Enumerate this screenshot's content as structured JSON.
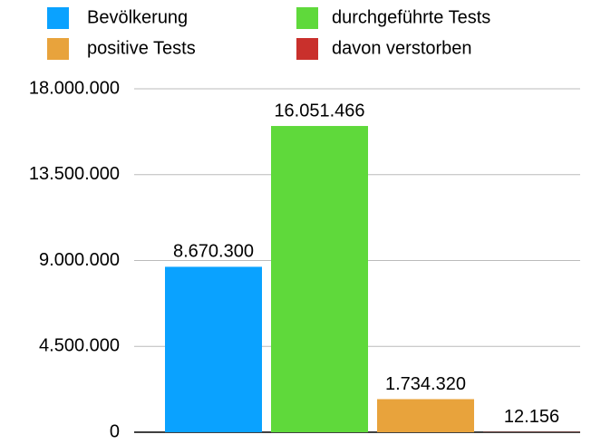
{
  "chart_data": {
    "type": "bar",
    "categories": [
      null
    ],
    "series": [
      {
        "name": "Bevölkerung",
        "color": "#0aa2ff",
        "values": [
          8670300
        ],
        "value_labels": [
          "8.670.300"
        ]
      },
      {
        "name": "durchgeführte Tests",
        "color": "#5fd93b",
        "values": [
          16051466
        ],
        "value_labels": [
          "16.051.466"
        ]
      },
      {
        "name": "positive Tests",
        "color": "#e8a33c",
        "values": [
          1734320
        ],
        "value_labels": [
          "1.734.320"
        ]
      },
      {
        "name": "davon verstorben",
        "color": "#c9302c",
        "values": [
          12156
        ],
        "value_labels": [
          "12.156"
        ]
      }
    ],
    "ylim": [
      0,
      18000000
    ],
    "yticks": [
      0,
      {
        "value": 4500000,
        "label": "4.500.000"
      },
      {
        "value": 9000000,
        "label": "9.000.000"
      },
      {
        "value": 13500000,
        "label": "13.500.000"
      },
      {
        "value": 18000000,
        "label": "18.000.000"
      }
    ],
    "grid": true,
    "legend": "top"
  }
}
